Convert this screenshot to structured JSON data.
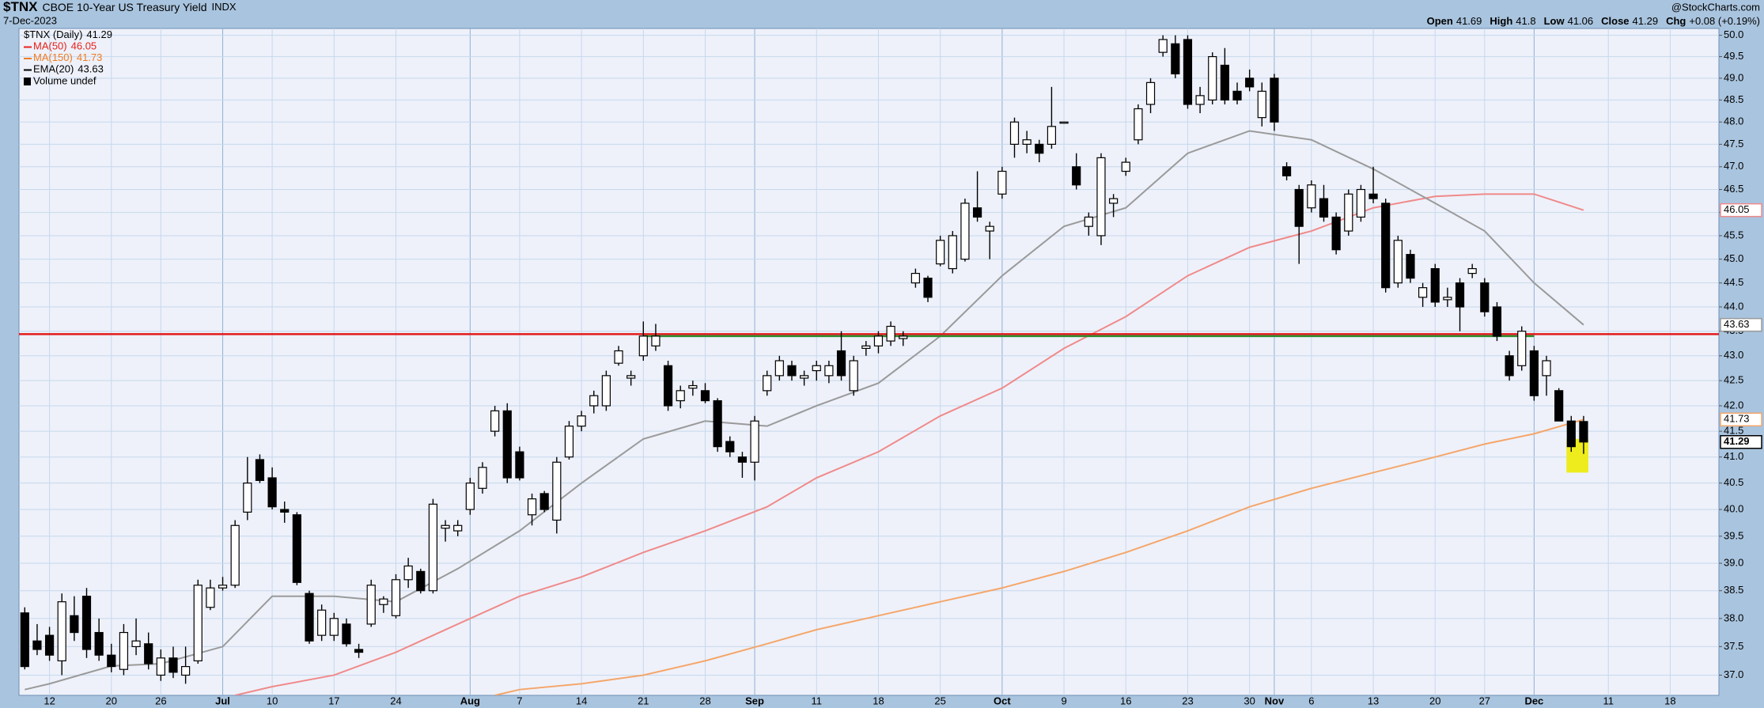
{
  "chart_data": {
    "type": "candlestick",
    "title": "$TNX",
    "subtitle": "CBOE 10-Year US Treasury Yield",
    "exchange": "INDX",
    "date": "7-Dec-2023",
    "source": "@StockCharts.com",
    "quote_labels": [
      "Open",
      "High",
      "Low",
      "Close"
    ],
    "change_label": "Chg",
    "change": "+0.08 (+0.19%)",
    "name": "$TNX (Daily)",
    "legend_extra": "Volume undef",
    "log_scale": true,
    "grid": true,
    "ylim": [
      36.65,
      50.16
    ],
    "yticks": [
      {
        "value": 37,
        "label": "37.0"
      },
      37.5,
      {
        "value": 38,
        "label": "38.0"
      },
      38.5,
      {
        "value": 39,
        "label": "39.0"
      },
      39.5,
      {
        "value": 40,
        "label": "40.0"
      },
      40.5,
      {
        "value": 41,
        "label": "41.0"
      },
      41.5,
      {
        "value": 42,
        "label": "42.0"
      },
      42.5,
      {
        "value": 43,
        "label": "43.0"
      },
      43.5,
      {
        "value": 44,
        "label": "44.0"
      },
      44.5,
      {
        "value": 45,
        "label": "45.0"
      },
      45.5,
      {
        "value": 46,
        "label": "46.0"
      },
      46.5,
      {
        "value": 47,
        "label": "47.0"
      },
      47.5,
      {
        "value": 48,
        "label": "48.0"
      },
      48.5,
      {
        "value": 49,
        "label": "49.0"
      },
      49.5,
      {
        "value": 50,
        "label": "50.0"
      }
    ],
    "categories": [
      "Jun 8",
      "Jun 9",
      "Jun 12",
      "Jun 13",
      "Jun 14",
      "Jun 15",
      "Jun 16",
      "Jun 20",
      "Jun 21",
      "Jun 22",
      "Jun 23",
      "Jun 26",
      "Jun 27",
      "Jun 28",
      "Jun 29",
      "Jun 30",
      "Jul 3",
      "Jul 5",
      "Jul 6",
      "Jul 7",
      "Jul 10",
      "Jul 11",
      "Jul 12",
      "Jul 13",
      "Jul 14",
      "Jul 17",
      "Jul 18",
      "Jul 19",
      "Jul 20",
      "Jul 21",
      "Jul 24",
      "Jul 25",
      "Jul 26",
      "Jul 27",
      "Jul 28",
      "Jul 31",
      "Aug 1",
      "Aug 2",
      "Aug 3",
      "Aug 4",
      "Aug 7",
      "Aug 8",
      "Aug 9",
      "Aug 10",
      "Aug 11",
      "Aug 14",
      "Aug 15",
      "Aug 16",
      "Aug 17",
      "Aug 18",
      "Aug 21",
      "Aug 22",
      "Aug 23",
      "Aug 24",
      "Aug 25",
      "Aug 28",
      "Aug 29",
      "Aug 30",
      "Aug 31",
      "Sep 1",
      "Sep 5",
      "Sep 6",
      "Sep 7",
      "Sep 8",
      "Sep 11",
      "Sep 12",
      "Sep 13",
      "Sep 14",
      "Sep 15",
      "Sep 18",
      "Sep 19",
      "Sep 20",
      "Sep 21",
      "Sep 22",
      "Sep 25",
      "Sep 26",
      "Sep 27",
      "Sep 28",
      "Sep 29",
      "Oct 2",
      "Oct 3",
      "Oct 4",
      "Oct 5",
      "Oct 6",
      "Oct 9",
      "Oct 10",
      "Oct 11",
      "Oct 12",
      "Oct 13",
      "Oct 16",
      "Oct 17",
      "Oct 18",
      "Oct 19",
      "Oct 20",
      "Oct 23",
      "Oct 24",
      "Oct 25",
      "Oct 26",
      "Oct 27",
      "Oct 30",
      "Oct 31",
      "Nov 1",
      "Nov 2",
      "Nov 3",
      "Nov 6",
      "Nov 7",
      "Nov 8",
      "Nov 9",
      "Nov 10",
      "Nov 13",
      "Nov 14",
      "Nov 15",
      "Nov 16",
      "Nov 17",
      "Nov 20",
      "Nov 21",
      "Nov 22",
      "Nov 24",
      "Nov 27",
      "Nov 28",
      "Nov 29",
      "Nov 30",
      "Dec 1",
      "Dec 4",
      "Dec 5",
      "Dec 6",
      "Dec 7",
      "Dec 8",
      "Dec 11",
      "Dec 12",
      "Dec 13",
      "Dec 14",
      "Dec 15",
      "Dec 18",
      "Dec 19",
      "Dec 20",
      "Dec 21"
    ],
    "ohlc": [
      [
        38.1,
        38.2,
        37.1,
        37.15
      ],
      [
        37.6,
        37.9,
        37.35,
        37.45
      ],
      [
        37.7,
        37.85,
        37.25,
        37.35
      ],
      [
        37.25,
        38.45,
        37.0,
        38.3
      ],
      [
        38.05,
        38.4,
        37.6,
        37.75
      ],
      [
        38.4,
        38.55,
        37.3,
        37.45
      ],
      [
        37.75,
        38.0,
        37.25,
        37.35
      ],
      [
        37.35,
        37.55,
        37.05,
        37.15
      ],
      [
        37.1,
        37.9,
        37.0,
        37.75
      ],
      [
        37.5,
        38.0,
        37.35,
        37.6
      ],
      [
        37.55,
        37.75,
        37.1,
        37.2
      ],
      [
        37.0,
        37.45,
        36.9,
        37.3
      ],
      [
        37.3,
        37.5,
        36.95,
        37.05
      ],
      [
        37.0,
        37.5,
        36.85,
        37.15
      ],
      [
        37.25,
        38.7,
        37.2,
        38.6
      ],
      [
        38.2,
        38.7,
        38.15,
        38.55
      ],
      [
        38.55,
        38.75,
        38.5,
        38.6
      ],
      [
        38.6,
        39.8,
        38.55,
        39.7
      ],
      [
        39.95,
        41.0,
        39.8,
        40.5
      ],
      [
        40.95,
        41.05,
        40.5,
        40.55
      ],
      [
        40.6,
        40.8,
        40.0,
        40.05
      ],
      [
        40.0,
        40.15,
        39.75,
        39.95
      ],
      [
        39.9,
        39.95,
        38.6,
        38.65
      ],
      [
        38.45,
        38.5,
        37.55,
        37.6
      ],
      [
        37.7,
        38.25,
        37.6,
        38.15
      ],
      [
        37.7,
        38.1,
        37.6,
        38.0
      ],
      [
        37.9,
        38.0,
        37.5,
        37.55
      ],
      [
        37.45,
        37.55,
        37.3,
        37.4
      ],
      [
        37.9,
        38.7,
        37.85,
        38.6
      ],
      [
        38.25,
        38.4,
        38.1,
        38.35
      ],
      [
        38.05,
        38.8,
        38.0,
        38.7
      ],
      [
        38.7,
        39.1,
        38.55,
        38.95
      ],
      [
        38.85,
        38.9,
        38.45,
        38.5
      ],
      [
        38.5,
        40.2,
        38.45,
        40.1
      ],
      [
        39.65,
        39.8,
        39.4,
        39.7
      ],
      [
        39.6,
        39.8,
        39.5,
        39.7
      ],
      [
        40.0,
        40.6,
        39.9,
        40.5
      ],
      [
        40.4,
        40.9,
        40.3,
        40.8
      ],
      [
        41.5,
        42.0,
        41.4,
        41.9
      ],
      [
        41.9,
        42.05,
        40.5,
        40.6
      ],
      [
        41.1,
        41.2,
        40.55,
        40.6
      ],
      [
        39.9,
        40.3,
        39.7,
        40.2
      ],
      [
        40.3,
        40.35,
        39.95,
        40.0
      ],
      [
        39.8,
        41.0,
        39.55,
        40.9
      ],
      [
        41.0,
        41.7,
        40.95,
        41.6
      ],
      [
        41.6,
        41.9,
        41.5,
        41.8
      ],
      [
        42.0,
        42.3,
        41.85,
        42.2
      ],
      [
        42.0,
        42.7,
        41.9,
        42.6
      ],
      [
        42.85,
        43.2,
        42.8,
        43.1
      ],
      [
        42.55,
        42.7,
        42.4,
        42.6
      ],
      [
        43.0,
        43.7,
        42.9,
        43.4
      ],
      [
        43.2,
        43.65,
        43.1,
        43.4
      ],
      [
        42.8,
        42.9,
        41.9,
        42.0
      ],
      [
        42.1,
        42.4,
        41.95,
        42.3
      ],
      [
        42.35,
        42.5,
        42.2,
        42.4
      ],
      [
        42.3,
        42.45,
        42.05,
        42.1
      ],
      [
        42.1,
        42.15,
        41.1,
        41.2
      ],
      [
        41.3,
        41.4,
        41.0,
        41.1
      ],
      [
        41.0,
        41.1,
        40.6,
        40.9
      ],
      [
        40.9,
        41.8,
        40.55,
        41.7
      ],
      [
        42.3,
        42.7,
        42.2,
        42.6
      ],
      [
        42.6,
        43.0,
        42.5,
        42.9
      ],
      [
        42.8,
        42.9,
        42.5,
        42.6
      ],
      [
        42.55,
        42.7,
        42.4,
        42.6
      ],
      [
        42.7,
        42.9,
        42.5,
        42.8
      ],
      [
        42.6,
        42.9,
        42.45,
        42.8
      ],
      [
        43.1,
        43.5,
        42.5,
        42.6
      ],
      [
        42.3,
        43.0,
        42.2,
        42.9
      ],
      [
        43.15,
        43.3,
        43.0,
        43.2
      ],
      [
        43.2,
        43.5,
        43.05,
        43.4
      ],
      [
        43.3,
        43.7,
        43.2,
        43.6
      ],
      [
        43.35,
        43.5,
        43.2,
        43.4
      ],
      [
        44.5,
        44.8,
        44.4,
        44.7
      ],
      [
        44.6,
        44.65,
        44.1,
        44.2
      ],
      [
        44.9,
        45.5,
        44.85,
        45.4
      ],
      [
        44.8,
        45.6,
        44.7,
        45.5
      ],
      [
        45.0,
        46.3,
        44.95,
        46.2
      ],
      [
        46.1,
        46.9,
        45.8,
        45.9
      ],
      [
        45.6,
        45.8,
        45.0,
        45.7
      ],
      [
        46.4,
        47.0,
        46.3,
        46.9
      ],
      [
        47.5,
        48.1,
        47.2,
        48.0
      ],
      [
        47.5,
        47.8,
        47.3,
        47.6
      ],
      [
        47.5,
        47.6,
        47.1,
        47.3
      ],
      [
        47.5,
        48.8,
        47.4,
        47.9
      ],
      [
        48.0,
        48.0,
        48.0,
        48.0
      ],
      [
        47.0,
        47.3,
        46.5,
        46.6
      ],
      [
        45.7,
        46.0,
        45.5,
        45.9
      ],
      [
        45.5,
        47.3,
        45.3,
        47.2
      ],
      [
        46.2,
        46.4,
        45.9,
        46.3
      ],
      [
        46.9,
        47.2,
        46.8,
        47.1
      ],
      [
        47.6,
        48.4,
        47.5,
        48.3
      ],
      [
        48.4,
        49.0,
        48.2,
        48.9
      ],
      [
        49.6,
        50.0,
        49.5,
        49.9
      ],
      [
        49.8,
        50.0,
        49.0,
        49.1
      ],
      [
        49.9,
        50.0,
        48.3,
        48.4
      ],
      [
        48.4,
        48.8,
        48.2,
        48.6
      ],
      [
        48.5,
        49.6,
        48.4,
        49.5
      ],
      [
        49.3,
        49.7,
        48.4,
        48.5
      ],
      [
        48.7,
        48.9,
        48.4,
        48.5
      ],
      [
        49.0,
        49.2,
        48.7,
        48.8
      ],
      [
        48.1,
        48.9,
        47.9,
        48.7
      ],
      [
        49.0,
        49.1,
        47.8,
        48.0
      ],
      [
        47.0,
        47.1,
        46.7,
        46.8
      ],
      [
        46.5,
        46.6,
        44.9,
        45.7
      ],
      [
        46.1,
        46.7,
        46.0,
        46.6
      ],
      [
        46.3,
        46.6,
        45.8,
        45.9
      ],
      [
        45.9,
        46.0,
        45.1,
        45.2
      ],
      [
        45.6,
        46.5,
        45.5,
        46.4
      ],
      [
        45.9,
        46.6,
        45.8,
        46.5
      ],
      [
        46.4,
        47.0,
        46.2,
        46.3
      ],
      [
        46.2,
        46.3,
        44.3,
        44.4
      ],
      [
        44.5,
        45.5,
        44.4,
        45.4
      ],
      [
        45.1,
        45.2,
        44.5,
        44.6
      ],
      [
        44.2,
        44.5,
        44.0,
        44.4
      ],
      [
        44.8,
        44.9,
        44.0,
        44.1
      ],
      [
        44.15,
        44.4,
        44.0,
        44.2
      ],
      [
        44.5,
        44.6,
        43.5,
        44.0
      ],
      [
        44.7,
        44.9,
        44.6,
        44.8
      ],
      [
        44.5,
        44.6,
        43.8,
        43.9
      ],
      [
        44.0,
        44.1,
        43.3,
        43.4
      ],
      [
        43.0,
        43.1,
        42.5,
        42.6
      ],
      [
        42.8,
        43.6,
        42.7,
        43.5
      ],
      [
        43.1,
        43.2,
        42.1,
        42.2
      ],
      [
        42.6,
        43.0,
        42.2,
        42.9
      ],
      [
        42.3,
        42.35,
        41.7,
        41.7
      ],
      [
        41.7,
        41.8,
        41.1,
        41.2
      ],
      [
        41.69,
        41.8,
        41.06,
        41.29
      ],
      null,
      null,
      null,
      null,
      null,
      null,
      null,
      null,
      null,
      null
    ],
    "series": [
      {
        "name": "MA(50)",
        "color": "#f08a8a",
        "text_color": "#e8211b",
        "x": [
          "Jul 5",
          "Jul 10",
          "Jul 17",
          "Jul 24",
          "Jul 31",
          "Aug 7",
          "Aug 14",
          "Aug 21",
          "Aug 28",
          "Sep 5",
          "Sep 11",
          "Sep 18",
          "Sep 25",
          "Oct 2",
          "Oct 9",
          "Oct 16",
          "Oct 23",
          "Oct 30",
          "Nov 6",
          "Nov 13",
          "Nov 20",
          "Nov 27",
          "Dec 1",
          "Dec 7"
        ],
        "values": [
          36.65,
          36.8,
          37.0,
          37.4,
          37.9,
          38.4,
          38.75,
          39.2,
          39.6,
          40.05,
          40.6,
          41.1,
          41.8,
          42.35,
          43.15,
          43.8,
          44.65,
          45.25,
          45.6,
          46.1,
          46.35,
          46.4,
          46.4,
          46.05
        ]
      },
      {
        "name": "MA(150)",
        "color": "#f5a66a",
        "text_color": "#f07b22",
        "x": [
          "Aug 3",
          "Aug 7",
          "Aug 14",
          "Aug 21",
          "Aug 28",
          "Sep 5",
          "Sep 11",
          "Sep 18",
          "Sep 25",
          "Oct 2",
          "Oct 9",
          "Oct 16",
          "Oct 23",
          "Oct 30",
          "Nov 6",
          "Nov 13",
          "Nov 20",
          "Nov 27",
          "Dec 1",
          "Dec 7"
        ],
        "values": [
          36.65,
          36.75,
          36.85,
          37.0,
          37.25,
          37.55,
          37.8,
          38.05,
          38.3,
          38.55,
          38.85,
          39.2,
          39.6,
          40.05,
          40.4,
          40.7,
          41.0,
          41.25,
          41.45,
          41.73
        ]
      },
      {
        "name": "EMA(20)",
        "color": "#9a9a9a",
        "text_color": "#000000",
        "x": [
          "Jun 8",
          "Jun 12",
          "Jun 20",
          "Jun 26",
          "Jul 3",
          "Jul 10",
          "Jul 17",
          "Jul 24",
          "Jul 31",
          "Aug 7",
          "Aug 14",
          "Aug 21",
          "Aug 28",
          "Sep 5",
          "Sep 11",
          "Sep 18",
          "Sep 25",
          "Oct 2",
          "Oct 9",
          "Oct 16",
          "Oct 23",
          "Oct 30",
          "Nov 6",
          "Nov 13",
          "Nov 20",
          "Nov 27",
          "Dec 1",
          "Dec 7"
        ],
        "values": [
          36.75,
          36.85,
          37.16,
          37.2,
          37.5,
          38.4,
          38.4,
          38.3,
          38.9,
          39.6,
          40.5,
          41.35,
          41.7,
          41.6,
          42.0,
          42.45,
          43.4,
          44.65,
          45.7,
          46.1,
          47.3,
          47.8,
          47.6,
          46.95,
          46.2,
          45.6,
          44.5,
          43.63
        ]
      }
    ],
    "lines": [
      {
        "value": 43.44,
        "color": "#e31a1c"
      },
      {
        "value": 43.4,
        "from": "Aug 21",
        "to": "Dec 1",
        "color": "#2e8b2e"
      }
    ],
    "highlight": {
      "x": [
        "Dec 6",
        "Dec 7"
      ],
      "y": [
        40.7,
        41.35
      ],
      "color": "#eeec1c"
    },
    "xticks": [
      {
        "value": "Jun 12",
        "label": "12"
      },
      {
        "value": "Jun 20",
        "label": "20"
      },
      {
        "value": "Jun 26",
        "label": "26"
      },
      {
        "value": "Jul 3",
        "label": "Jul"
      },
      {
        "value": "Jul 10",
        "label": "10"
      },
      {
        "value": "Jul 17",
        "label": "17"
      },
      {
        "value": "Jul 24",
        "label": "24"
      },
      {
        "value": "Aug 1",
        "label": "Aug"
      },
      {
        "value": "Aug 7",
        "label": "7"
      },
      {
        "value": "Aug 14",
        "label": "14"
      },
      {
        "value": "Aug 21",
        "label": "21"
      },
      {
        "value": "Aug 28",
        "label": "28"
      },
      {
        "value": "Sep 1",
        "label": "Sep"
      },
      {
        "value": "Sep 11",
        "label": "11"
      },
      {
        "value": "Sep 18",
        "label": "18"
      },
      {
        "value": "Sep 25",
        "label": "25"
      },
      {
        "value": "Oct 2",
        "label": "Oct"
      },
      {
        "value": "Oct 9",
        "label": "9"
      },
      {
        "value": "Oct 16",
        "label": "16"
      },
      {
        "value": "Oct 23",
        "label": "23"
      },
      {
        "value": "Oct 30",
        "label": "30"
      },
      {
        "value": "Nov 1",
        "label": "Nov"
      },
      {
        "value": "Nov 6",
        "label": "6"
      },
      {
        "value": "Nov 13",
        "label": "13"
      },
      {
        "value": "Nov 20",
        "label": "20"
      },
      {
        "value": "Nov 27",
        "label": "27"
      },
      {
        "value": "Dec 1",
        "label": "Dec"
      },
      {
        "value": "Dec 11",
        "label": "11"
      },
      {
        "value": "Dec 18",
        "label": "18"
      }
    ]
  }
}
